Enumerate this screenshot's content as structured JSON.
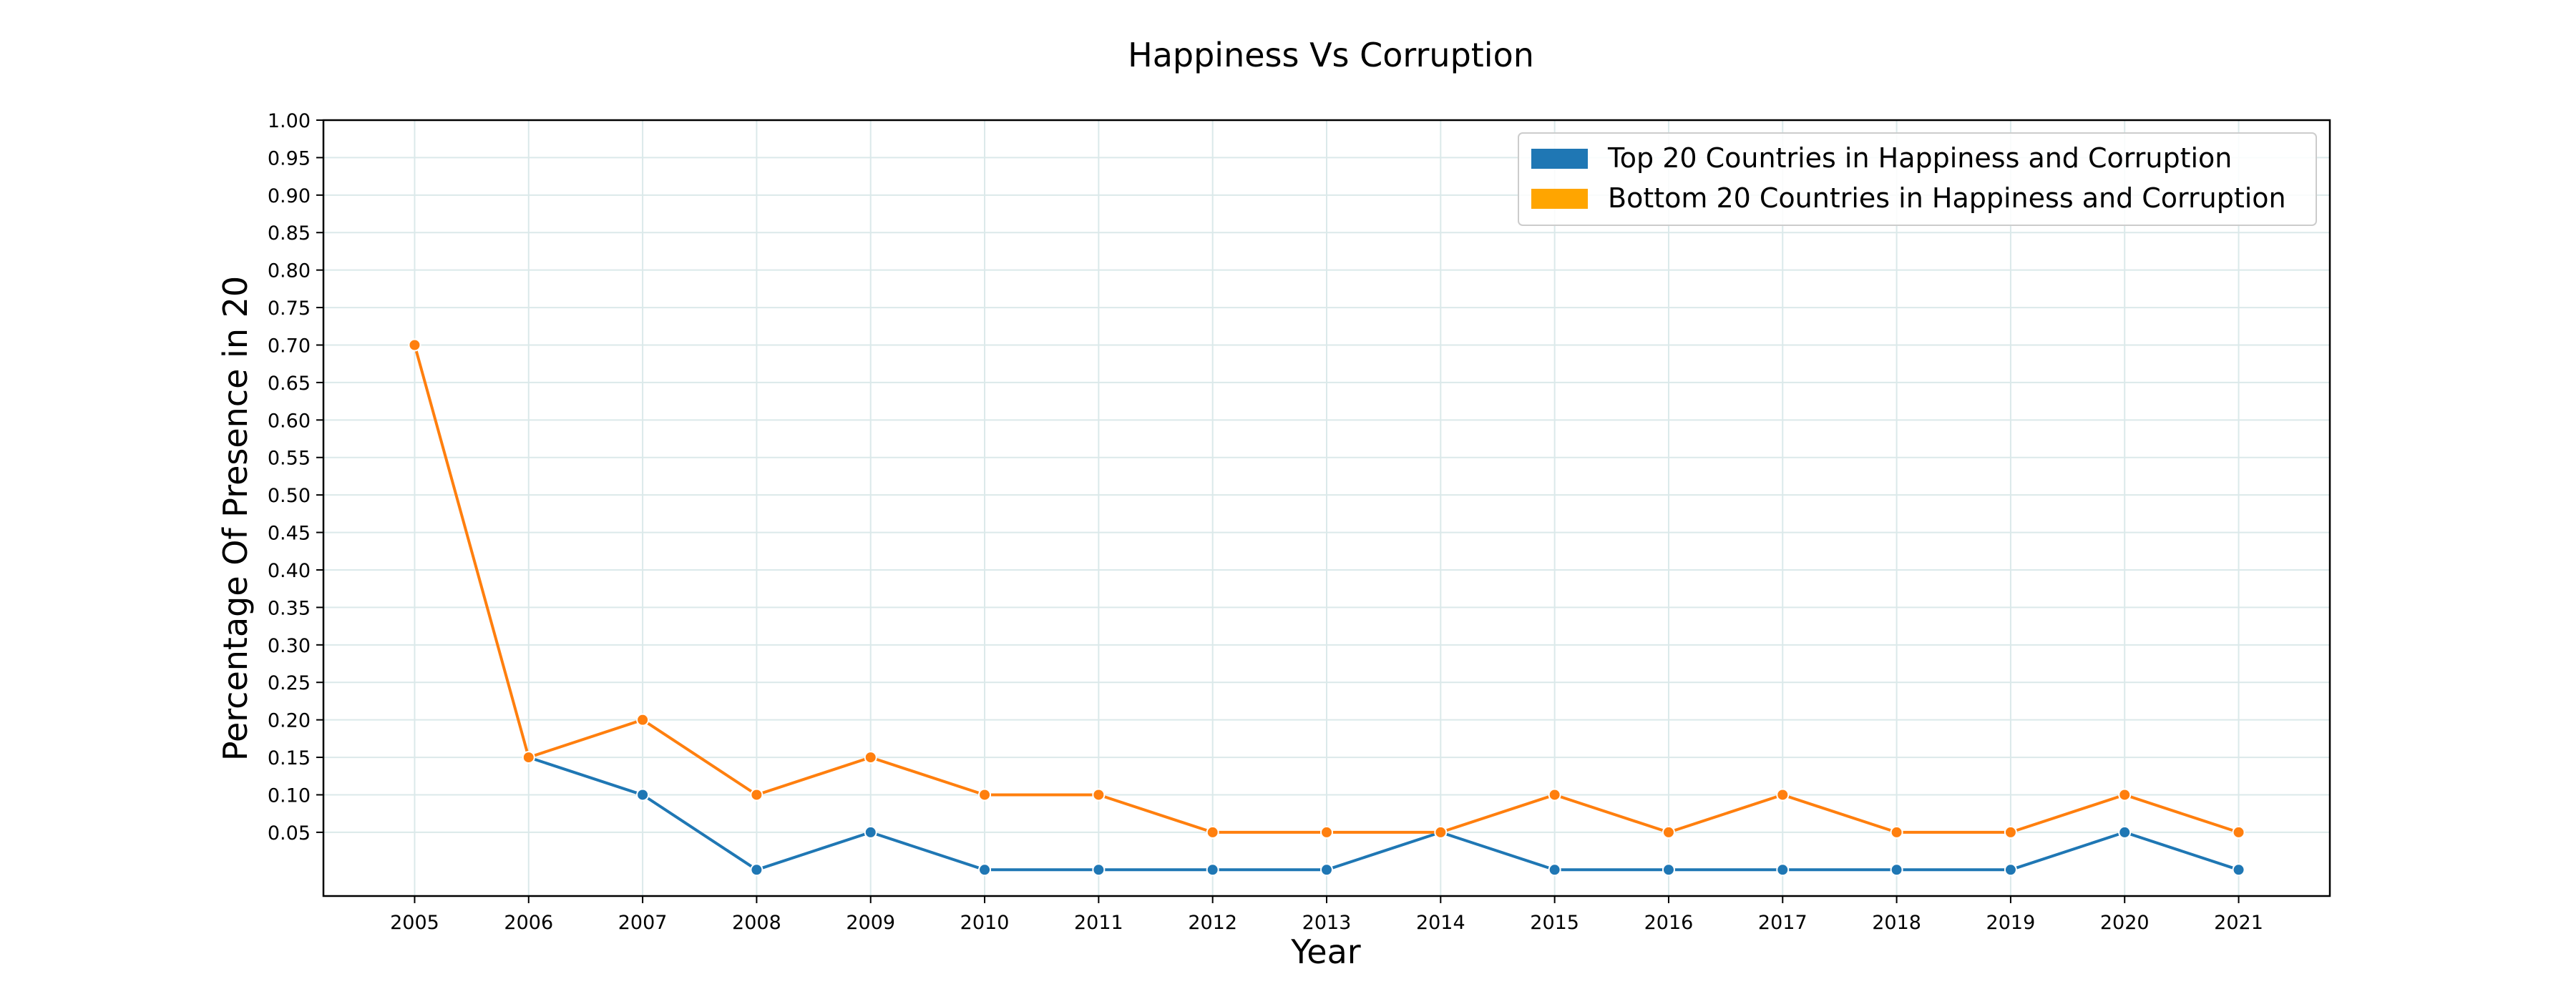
{
  "chart_data": {
    "type": "line",
    "title": "Happiness Vs Corruption",
    "xlabel": "Year",
    "ylabel": "Percentage Of Presence in 20",
    "x": [
      2005,
      2006,
      2007,
      2008,
      2009,
      2010,
      2011,
      2012,
      2013,
      2014,
      2015,
      2016,
      2017,
      2018,
      2019,
      2020,
      2021
    ],
    "x_tick_labels": [
      "2005",
      "2006",
      "2007",
      "2008",
      "2009",
      "2010",
      "2011",
      "2012",
      "2013",
      "2014",
      "2015",
      "2016",
      "2017",
      "2018",
      "2019",
      "2020",
      "2021"
    ],
    "y_ticks": [
      0.05,
      0.1,
      0.15,
      0.2,
      0.25,
      0.3,
      0.35,
      0.4,
      0.45,
      0.5,
      0.55,
      0.6,
      0.65,
      0.7,
      0.75,
      0.8,
      0.85,
      0.9,
      0.95,
      1.0
    ],
    "y_tick_labels": [
      "0.05",
      "0.10",
      "0.15",
      "0.20",
      "0.25",
      "0.30",
      "0.35",
      "0.40",
      "0.45",
      "0.50",
      "0.55",
      "0.60",
      "0.65",
      "0.70",
      "0.75",
      "0.80",
      "0.85",
      "0.90",
      "0.95",
      "1.00"
    ],
    "ylim": [
      -0.035,
      1.0
    ],
    "xlim": [
      2004.2,
      2021.8
    ],
    "grid": true,
    "legend_position": "top-right",
    "series": [
      {
        "name": "Top 20 Countries in Happiness and Corruption",
        "line_color": "#1f77b4",
        "legend_color": "#1f77b4",
        "x": [
          2006,
          2007,
          2008,
          2009,
          2010,
          2011,
          2012,
          2013,
          2014,
          2015,
          2016,
          2017,
          2018,
          2019,
          2020,
          2021
        ],
        "values": [
          0.15,
          0.1,
          0.0,
          0.05,
          0.0,
          0.0,
          0.0,
          0.0,
          0.05,
          0.0,
          0.0,
          0.0,
          0.0,
          0.0,
          0.05,
          0.0
        ]
      },
      {
        "name": "Bottom 20 Countries in Happiness and Corruption",
        "line_color": "#ff7f0e",
        "legend_color": "#ffa500",
        "x": [
          2005,
          2006,
          2007,
          2008,
          2009,
          2010,
          2011,
          2012,
          2013,
          2014,
          2015,
          2016,
          2017,
          2018,
          2019,
          2020,
          2021
        ],
        "values": [
          0.7,
          0.15,
          0.2,
          0.1,
          0.15,
          0.1,
          0.1,
          0.05,
          0.05,
          0.05,
          0.1,
          0.05,
          0.1,
          0.05,
          0.05,
          0.1,
          0.05
        ]
      }
    ]
  },
  "colors": {
    "grid": "#dbe9ea",
    "axes": "#000000",
    "background": "#ffffff"
  }
}
